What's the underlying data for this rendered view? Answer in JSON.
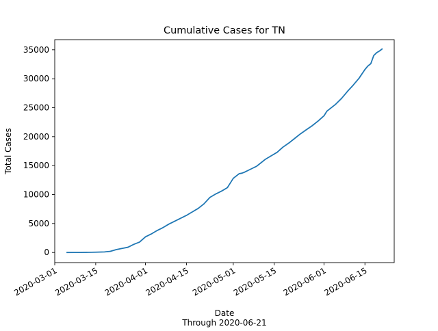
{
  "chart_data": {
    "type": "line",
    "title": "Cumulative Cases for TN",
    "xlabel": "Date",
    "xlabel_sub": "Through 2020-06-21",
    "ylabel": "Total Cases",
    "x_axis_type": "date",
    "xlim": [
      "2020-03-01",
      "2020-06-25"
    ],
    "ylim": [
      -1750,
      36750
    ],
    "x_ticks": [
      "2020-03-01",
      "2020-03-15",
      "2020-04-01",
      "2020-04-15",
      "2020-05-01",
      "2020-05-15",
      "2020-06-01",
      "2020-06-15"
    ],
    "y_ticks": [
      0,
      5000,
      10000,
      15000,
      20000,
      25000,
      30000,
      35000
    ],
    "grid": false,
    "legend": "none",
    "line_color": "#1f77b4",
    "series": [
      {
        "x": [
          "2020-03-05",
          "2020-03-10",
          "2020-03-15",
          "2020-03-18",
          "2020-03-20",
          "2020-03-22",
          "2020-03-24",
          "2020-03-26",
          "2020-03-28",
          "2020-03-30",
          "2020-04-01",
          "2020-04-03",
          "2020-04-05",
          "2020-04-07",
          "2020-04-09",
          "2020-04-11",
          "2020-04-13",
          "2020-04-15",
          "2020-04-17",
          "2020-04-19",
          "2020-04-21",
          "2020-04-23",
          "2020-04-25",
          "2020-04-27",
          "2020-04-29",
          "2020-04-30",
          "2020-05-01",
          "2020-05-02",
          "2020-05-03",
          "2020-05-04",
          "2020-05-05",
          "2020-05-07",
          "2020-05-09",
          "2020-05-10",
          "2020-05-12",
          "2020-05-14",
          "2020-05-16",
          "2020-05-18",
          "2020-05-20",
          "2020-05-22",
          "2020-05-24",
          "2020-05-26",
          "2020-05-28",
          "2020-05-30",
          "2020-06-01",
          "2020-06-02",
          "2020-06-03",
          "2020-06-05",
          "2020-06-07",
          "2020-06-09",
          "2020-06-11",
          "2020-06-13",
          "2020-06-15",
          "2020-06-16",
          "2020-06-17",
          "2020-06-18",
          "2020-06-19",
          "2020-06-20",
          "2020-06-21"
        ],
        "values": [
          0,
          10,
          50,
          100,
          200,
          500,
          700,
          900,
          1400,
          1800,
          2700,
          3200,
          3800,
          4300,
          4900,
          5400,
          5900,
          6400,
          7000,
          7600,
          8400,
          9500,
          10100,
          10600,
          11200,
          12000,
          12800,
          13200,
          13600,
          13700,
          13900,
          14400,
          14900,
          15300,
          16100,
          16700,
          17300,
          18200,
          18900,
          19700,
          20500,
          21200,
          21900,
          22700,
          23600,
          24400,
          24800,
          25600,
          26600,
          27800,
          28900,
          30100,
          31600,
          32200,
          32600,
          34000,
          34500,
          34800,
          35200
        ]
      }
    ]
  }
}
